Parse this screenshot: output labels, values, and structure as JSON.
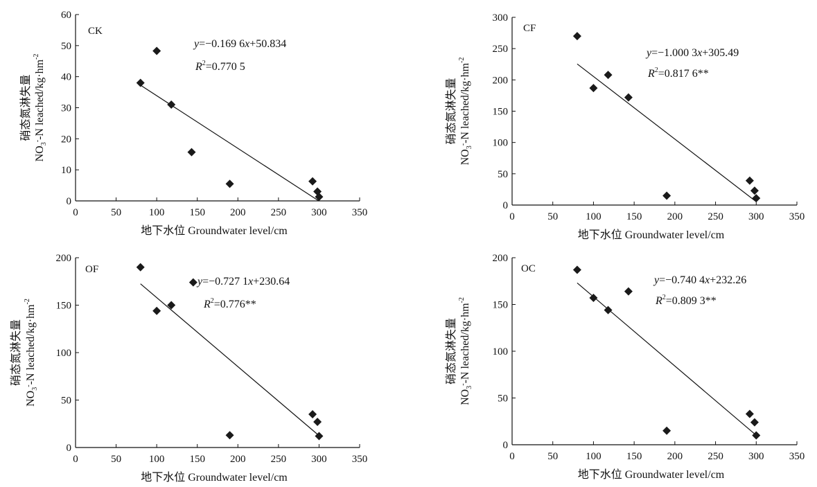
{
  "chart_data": [
    {
      "type": "scatter",
      "panel": "CK",
      "xlabel": "地下水位 Groundwater level/cm",
      "ylabel_cn": "硝态氮淋失量",
      "ylabel_en_pre": "NO",
      "ylabel_en_sub": "3",
      "ylabel_en_sup": "-",
      "ylabel_en_post": "-N leached/kg·hm",
      "ylabel_en_exp": "-2",
      "xlim": [
        0,
        350
      ],
      "ylim": [
        0,
        60
      ],
      "xticks": [
        0,
        50,
        100,
        150,
        200,
        250,
        300,
        350
      ],
      "yticks": [
        0,
        10,
        20,
        30,
        40,
        50,
        60
      ],
      "equation": {
        "y": "y",
        "eq": "=−0.169 6",
        "x": "x",
        "rest": "+50.834"
      },
      "r2": {
        "r": "R",
        "sup": "2",
        "rest": "=0.770 5"
      },
      "fit": {
        "slope": -0.1696,
        "intercept": 50.834,
        "x_range": [
          80,
          300
        ]
      },
      "points": [
        {
          "x": 80,
          "y": 38
        },
        {
          "x": 100,
          "y": 48.3
        },
        {
          "x": 118,
          "y": 31
        },
        {
          "x": 143,
          "y": 15.7
        },
        {
          "x": 190,
          "y": 5.5
        },
        {
          "x": 292,
          "y": 6.3
        },
        {
          "x": 298,
          "y": 3
        },
        {
          "x": 300,
          "y": 1.3
        }
      ]
    },
    {
      "type": "scatter",
      "panel": "CF",
      "xlabel": "地下水位 Groundwater level/cm",
      "ylabel_cn": "硝态氮淋失量",
      "ylabel_en_pre": "NO",
      "ylabel_en_sub": "3",
      "ylabel_en_sup": "-",
      "ylabel_en_post": "-N leached/kg·hm",
      "ylabel_en_exp": "-2",
      "xlim": [
        0,
        350
      ],
      "ylim": [
        0,
        300
      ],
      "xticks": [
        0,
        50,
        100,
        150,
        200,
        250,
        300,
        350
      ],
      "yticks": [
        0,
        50,
        100,
        150,
        200,
        250,
        300
      ],
      "equation": {
        "y": "y",
        "eq": "=−1.000 3",
        "x": "x",
        "rest": "+305.49"
      },
      "r2": {
        "r": "R",
        "sup": "2",
        "rest": "=0.817 6**"
      },
      "fit": {
        "slope": -1.0003,
        "intercept": 305.49,
        "x_range": [
          80,
          300
        ]
      },
      "points": [
        {
          "x": 80,
          "y": 270
        },
        {
          "x": 100,
          "y": 187
        },
        {
          "x": 118,
          "y": 208
        },
        {
          "x": 143,
          "y": 172
        },
        {
          "x": 190,
          "y": 15
        },
        {
          "x": 292,
          "y": 39
        },
        {
          "x": 298,
          "y": 23
        },
        {
          "x": 300,
          "y": 11
        }
      ]
    },
    {
      "type": "scatter",
      "panel": "OF",
      "xlabel": "地下水位 Groundwater level/cm",
      "ylabel_cn": "硝态氮淋失量",
      "ylabel_en_pre": "NO",
      "ylabel_en_sub": "3",
      "ylabel_en_sup": "-",
      "ylabel_en_post": "-N leached/kg·hm",
      "ylabel_en_exp": "-2",
      "xlim": [
        0,
        350
      ],
      "ylim": [
        0,
        200
      ],
      "xticks": [
        0,
        50,
        100,
        150,
        200,
        250,
        300,
        350
      ],
      "yticks": [
        0,
        50,
        100,
        150,
        200
      ],
      "equation": {
        "y": "y",
        "eq": "=−0.727 1",
        "x": "x",
        "rest": "+230.64"
      },
      "r2": {
        "r": "R",
        "sup": "2",
        "rest": "=0.776**"
      },
      "fit": {
        "slope": -0.7271,
        "intercept": 230.64,
        "x_range": [
          80,
          300
        ]
      },
      "points": [
        {
          "x": 80,
          "y": 190
        },
        {
          "x": 100,
          "y": 144
        },
        {
          "x": 118,
          "y": 150
        },
        {
          "x": 145,
          "y": 174
        },
        {
          "x": 190,
          "y": 13
        },
        {
          "x": 292,
          "y": 35
        },
        {
          "x": 298,
          "y": 27
        },
        {
          "x": 300,
          "y": 12
        }
      ]
    },
    {
      "type": "scatter",
      "panel": "OC",
      "xlabel": "地下水位 Groundwater level/cm",
      "ylabel_cn": "硝态氮淋失量",
      "ylabel_en_pre": "NO",
      "ylabel_en_sub": "3",
      "ylabel_en_sup": "-",
      "ylabel_en_post": "-N leached/kg·hm",
      "ylabel_en_exp": "-2",
      "xlim": [
        0,
        350
      ],
      "ylim": [
        0,
        200
      ],
      "xticks": [
        0,
        50,
        100,
        150,
        200,
        250,
        300,
        350
      ],
      "yticks": [
        0,
        50,
        100,
        150,
        200
      ],
      "equation": {
        "y": "y",
        "eq": "=−0.740 4",
        "x": "x",
        "rest": "+232.26"
      },
      "r2": {
        "r": "R",
        "sup": "2",
        "rest": "=0.809 3**"
      },
      "fit": {
        "slope": -0.7404,
        "intercept": 232.26,
        "x_range": [
          80,
          300
        ]
      },
      "points": [
        {
          "x": 80,
          "y": 187
        },
        {
          "x": 100,
          "y": 157
        },
        {
          "x": 118,
          "y": 144
        },
        {
          "x": 143,
          "y": 164
        },
        {
          "x": 190,
          "y": 15
        },
        {
          "x": 292,
          "y": 33
        },
        {
          "x": 298,
          "y": 24
        },
        {
          "x": 300,
          "y": 10
        }
      ]
    }
  ]
}
